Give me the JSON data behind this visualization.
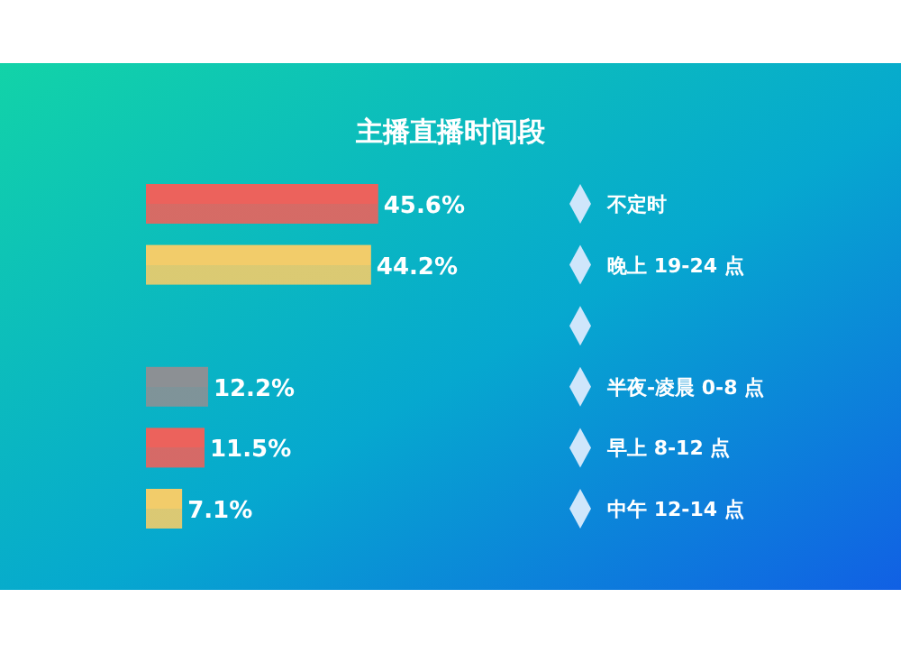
{
  "chart_data": {
    "type": "bar",
    "orientation": "horizontal",
    "title": "主播直播时间段",
    "categories": [
      "不定时",
      "晚上 19-24 点",
      null,
      "半夜-凌晨 0-8 点",
      "早上 8-12 点",
      "中午 12-14 点"
    ],
    "values": [
      45.6,
      44.2,
      null,
      12.2,
      11.5,
      7.1
    ],
    "value_labels": [
      "45.6%",
      "44.2%",
      null,
      "12.2%",
      "11.5%",
      "7.1%"
    ],
    "colors": [
      "#ec625c",
      "#f2cc6a",
      null,
      "#8c9094",
      "#ec625c",
      "#f2cc6a"
    ]
  }
}
